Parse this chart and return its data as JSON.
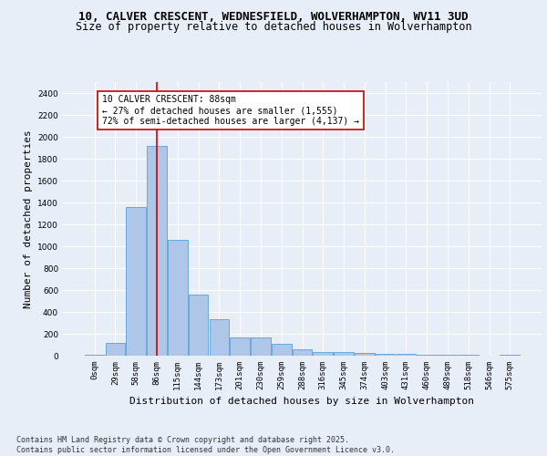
{
  "title_line1": "10, CALVER CRESCENT, WEDNESFIELD, WOLVERHAMPTON, WV11 3UD",
  "title_line2": "Size of property relative to detached houses in Wolverhampton",
  "xlabel": "Distribution of detached houses by size in Wolverhampton",
  "ylabel": "Number of detached properties",
  "footer": "Contains HM Land Registry data © Crown copyright and database right 2025.\nContains public sector information licensed under the Open Government Licence v3.0.",
  "bin_labels": [
    "0sqm",
    "29sqm",
    "58sqm",
    "86sqm",
    "115sqm",
    "144sqm",
    "173sqm",
    "201sqm",
    "230sqm",
    "259sqm",
    "288sqm",
    "316sqm",
    "345sqm",
    "374sqm",
    "403sqm",
    "431sqm",
    "460sqm",
    "489sqm",
    "518sqm",
    "546sqm",
    "575sqm"
  ],
  "bar_values": [
    10,
    120,
    1360,
    1920,
    1060,
    560,
    335,
    170,
    165,
    105,
    60,
    35,
    30,
    25,
    20,
    15,
    10,
    8,
    5,
    3,
    10
  ],
  "bar_color": "#aec6e8",
  "bar_edge_color": "#5a9fd4",
  "property_bin_index": 3,
  "vline_color": "#cc0000",
  "annotation_text": "10 CALVER CRESCENT: 88sqm\n← 27% of detached houses are smaller (1,555)\n72% of semi-detached houses are larger (4,137) →",
  "annotation_box_color": "#ffffff",
  "annotation_box_edge": "#cc0000",
  "ylim": [
    0,
    2500
  ],
  "yticks": [
    0,
    200,
    400,
    600,
    800,
    1000,
    1200,
    1400,
    1600,
    1800,
    2000,
    2200,
    2400
  ],
  "bg_color": "#e8eef8",
  "plot_bg_color": "#e8eef8",
  "grid_color": "#ffffff",
  "title_fontsize": 9,
  "subtitle_fontsize": 8.5,
  "axis_label_fontsize": 8,
  "tick_fontsize": 6.5,
  "annotation_fontsize": 7,
  "ylabel_fontsize": 8
}
